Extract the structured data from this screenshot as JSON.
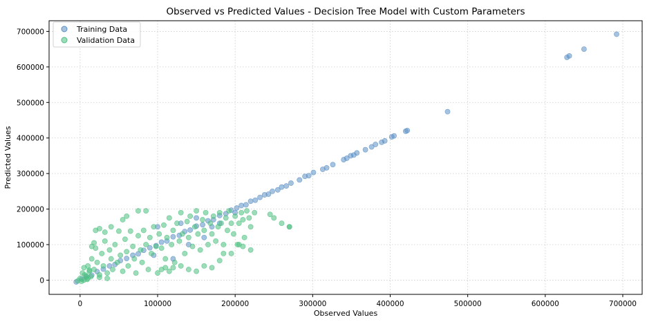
{
  "chart_data": {
    "type": "scatter",
    "title": "Observed vs Predicted Values - Decision Tree Model with Custom Parameters",
    "xlabel": "Observed Values",
    "ylabel": "Predicted Values",
    "xlim": [
      -40000,
      725000
    ],
    "ylim": [
      -40000,
      730000
    ],
    "xticks": [
      0,
      100000,
      200000,
      300000,
      400000,
      500000,
      600000,
      700000
    ],
    "yticks": [
      0,
      100000,
      200000,
      300000,
      400000,
      500000,
      600000,
      700000
    ],
    "xtick_labels": [
      "0",
      "100000",
      "200000",
      "300000",
      "400000",
      "500000",
      "600000",
      "700000"
    ],
    "ytick_labels": [
      "0",
      "100000",
      "200000",
      "300000",
      "400000",
      "500000",
      "600000",
      "700000"
    ],
    "grid": true,
    "legend_position": "top-left",
    "series": [
      {
        "name": "Training Data",
        "color": "#5b8fc4",
        "points": [
          [
            -5000,
            -5000
          ],
          [
            2000,
            3000
          ],
          [
            8000,
            9000
          ],
          [
            15000,
            14000
          ],
          [
            22000,
            24000
          ],
          [
            30000,
            31000
          ],
          [
            38000,
            40000
          ],
          [
            45000,
            44000
          ],
          [
            52000,
            55000
          ],
          [
            60000,
            61000
          ],
          [
            68000,
            70000
          ],
          [
            75000,
            74000
          ],
          [
            82000,
            84000
          ],
          [
            90000,
            91000
          ],
          [
            98000,
            97000
          ],
          [
            105000,
            107000
          ],
          [
            112000,
            110000
          ],
          [
            120000,
            122000
          ],
          [
            128000,
            126000
          ],
          [
            135000,
            137000
          ],
          [
            142000,
            141000
          ],
          [
            150000,
            152000
          ],
          [
            158000,
            156000
          ],
          [
            165000,
            167000
          ],
          [
            172000,
            170000
          ],
          [
            180000,
            182000
          ],
          [
            188000,
            187000
          ],
          [
            195000,
            197000
          ],
          [
            202000,
            203000
          ],
          [
            208000,
            210000
          ],
          [
            214000,
            212000
          ],
          [
            220000,
            222000
          ],
          [
            226000,
            225000
          ],
          [
            232000,
            233000
          ],
          [
            238000,
            240000
          ],
          [
            243000,
            242000
          ],
          [
            248000,
            250000
          ],
          [
            255000,
            254000
          ],
          [
            260000,
            262000
          ],
          [
            266000,
            265000
          ],
          [
            272000,
            273000
          ],
          [
            283000,
            282000
          ],
          [
            290000,
            292000
          ],
          [
            295000,
            294000
          ],
          [
            301000,
            303000
          ],
          [
            313000,
            312000
          ],
          [
            318000,
            316000
          ],
          [
            326000,
            325000
          ],
          [
            340000,
            339000
          ],
          [
            344000,
            343000
          ],
          [
            349000,
            350000
          ],
          [
            353000,
            352000
          ],
          [
            357000,
            358000
          ],
          [
            368000,
            367000
          ],
          [
            376000,
            375000
          ],
          [
            381000,
            382000
          ],
          [
            389000,
            388000
          ],
          [
            393000,
            392000
          ],
          [
            402000,
            403000
          ],
          [
            405000,
            406000
          ],
          [
            420000,
            419000
          ],
          [
            422000,
            421000
          ],
          [
            474000,
            474000
          ],
          [
            628000,
            627000
          ],
          [
            631000,
            631000
          ],
          [
            650000,
            650000
          ],
          [
            692000,
            692000
          ],
          [
            120000,
            60000
          ],
          [
            140000,
            100000
          ],
          [
            100000,
            150000
          ],
          [
            160000,
            120000
          ],
          [
            180000,
            160000
          ],
          [
            200000,
            190000
          ],
          [
            95000,
            70000
          ],
          [
            130000,
            160000
          ],
          [
            150000,
            175000
          ],
          [
            170000,
            150000
          ]
        ]
      },
      {
        "name": "Validation Data",
        "color": "#4cbf80",
        "points": [
          [
            0,
            5000
          ],
          [
            3000,
            20000
          ],
          [
            5000,
            35000
          ],
          [
            8000,
            12000
          ],
          [
            10000,
            40000
          ],
          [
            12000,
            25000
          ],
          [
            15000,
            60000
          ],
          [
            18000,
            30000
          ],
          [
            20000,
            90000
          ],
          [
            22000,
            50000
          ],
          [
            25000,
            15000
          ],
          [
            28000,
            75000
          ],
          [
            30000,
            40000
          ],
          [
            32000,
            110000
          ],
          [
            35000,
            20000
          ],
          [
            38000,
            85000
          ],
          [
            40000,
            60000
          ],
          [
            42000,
            30000
          ],
          [
            45000,
            100000
          ],
          [
            48000,
            50000
          ],
          [
            50000,
            138000
          ],
          [
            52000,
            70000
          ],
          [
            55000,
            25000
          ],
          [
            58000,
            115000
          ],
          [
            60000,
            80000
          ],
          [
            62000,
            40000
          ],
          [
            65000,
            138000
          ],
          [
            68000,
            95000
          ],
          [
            70000,
            60000
          ],
          [
            72000,
            20000
          ],
          [
            75000,
            125000
          ],
          [
            78000,
            85000
          ],
          [
            80000,
            50000
          ],
          [
            82000,
            140000
          ],
          [
            85000,
            100000
          ],
          [
            88000,
            30000
          ],
          [
            90000,
            120000
          ],
          [
            92000,
            75000
          ],
          [
            95000,
            150000
          ],
          [
            98000,
            95000
          ],
          [
            100000,
            20000
          ],
          [
            102000,
            130000
          ],
          [
            105000,
            90000
          ],
          [
            108000,
            155000
          ],
          [
            110000,
            60000
          ],
          [
            112000,
            120000
          ],
          [
            115000,
            175000
          ],
          [
            118000,
            100000
          ],
          [
            120000,
            140000
          ],
          [
            122000,
            50000
          ],
          [
            125000,
            160000
          ],
          [
            128000,
            110000
          ],
          [
            130000,
            190000
          ],
          [
            132000,
            130000
          ],
          [
            135000,
            75000
          ],
          [
            138000,
            165000
          ],
          [
            140000,
            120000
          ],
          [
            142000,
            180000
          ],
          [
            145000,
            95000
          ],
          [
            148000,
            150000
          ],
          [
            150000,
            195000
          ],
          [
            152000,
            130000
          ],
          [
            155000,
            85000
          ],
          [
            158000,
            170000
          ],
          [
            160000,
            140000
          ],
          [
            162000,
            190000
          ],
          [
            165000,
            100000
          ],
          [
            168000,
            160000
          ],
          [
            170000,
            130000
          ],
          [
            172000,
            180000
          ],
          [
            175000,
            110000
          ],
          [
            178000,
            150000
          ],
          [
            180000,
            190000
          ],
          [
            182000,
            160000
          ],
          [
            185000,
            100000
          ],
          [
            188000,
            175000
          ],
          [
            190000,
            140000
          ],
          [
            192000,
            195000
          ],
          [
            195000,
            160000
          ],
          [
            198000,
            130000
          ],
          [
            200000,
            180000
          ],
          [
            203000,
            100000
          ],
          [
            205000,
            160000
          ],
          [
            208000,
            190000
          ],
          [
            210000,
            170000
          ],
          [
            212000,
            120000
          ],
          [
            215000,
            195000
          ],
          [
            218000,
            175000
          ],
          [
            220000,
            150000
          ],
          [
            225000,
            190000
          ],
          [
            20000,
            140000
          ],
          [
            25000,
            145000
          ],
          [
            32000,
            135000
          ],
          [
            15000,
            95000
          ],
          [
            18000,
            105000
          ],
          [
            40000,
            150000
          ],
          [
            55000,
            170000
          ],
          [
            60000,
            180000
          ],
          [
            75000,
            195000
          ],
          [
            85000,
            195000
          ],
          [
            105000,
            30000
          ],
          [
            110000,
            35000
          ],
          [
            115000,
            25000
          ],
          [
            120000,
            35000
          ],
          [
            130000,
            40000
          ],
          [
            140000,
            30000
          ],
          [
            150000,
            25000
          ],
          [
            160000,
            40000
          ],
          [
            170000,
            35000
          ],
          [
            180000,
            55000
          ],
          [
            185000,
            75000
          ],
          [
            195000,
            75000
          ],
          [
            205000,
            100000
          ],
          [
            210000,
            95000
          ],
          [
            220000,
            85000
          ],
          [
            245000,
            185000
          ],
          [
            250000,
            175000
          ],
          [
            260000,
            160000
          ],
          [
            270000,
            150000
          ],
          [
            270000,
            150000
          ],
          [
            -3000,
            -2000
          ],
          [
            2000,
            -3000
          ],
          [
            5000,
            0
          ],
          [
            10000,
            5000
          ],
          [
            14000,
            10000
          ],
          [
            6000,
            15000
          ],
          [
            9000,
            2000
          ],
          [
            12000,
            28000
          ],
          [
            25000,
            8000
          ],
          [
            35000,
            5000
          ]
        ]
      }
    ]
  }
}
